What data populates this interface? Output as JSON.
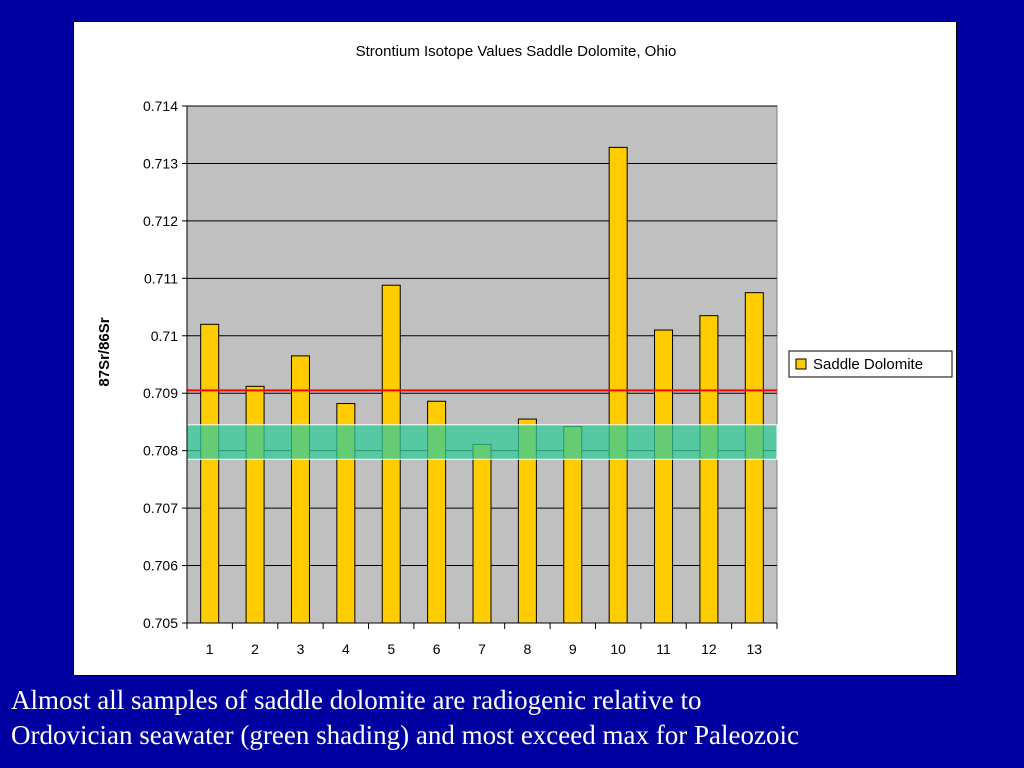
{
  "slide": {
    "background_color": "#0000a0",
    "caption_lines": [
      "Almost all samples of saddle dolomite are radiogenic relative to",
      "Ordovician seawater (green shading) and most exceed max for Paleozoic"
    ]
  },
  "chart_data": {
    "type": "bar",
    "title": "Strontium Isotope Values Saddle Dolomite, Ohio",
    "xlabel": "",
    "ylabel": "87Sr/86Sr",
    "categories": [
      "1",
      "2",
      "3",
      "4",
      "5",
      "6",
      "7",
      "8",
      "9",
      "10",
      "11",
      "12",
      "13"
    ],
    "series": [
      {
        "name": "Saddle Dolomite",
        "color": "#ffcc00",
        "values": [
          0.7102,
          0.70912,
          0.70965,
          0.70882,
          0.71088,
          0.70886,
          0.70811,
          0.70855,
          0.70842,
          0.71328,
          0.7101,
          0.71035,
          0.71075
        ]
      }
    ],
    "ylim": [
      0.705,
      0.714
    ],
    "yticks": [
      "0.705",
      "0.706",
      "0.707",
      "0.708",
      "0.709",
      "0.71",
      "0.711",
      "0.712",
      "0.713",
      "0.714"
    ],
    "grid": true,
    "plot_background": "#c0c0c0",
    "legend": "right",
    "reference_line": {
      "value": 0.70905,
      "color": "#ff0000"
    },
    "shaded_band": {
      "from": 0.70785,
      "to": 0.70845,
      "color": "#33cc99"
    }
  }
}
